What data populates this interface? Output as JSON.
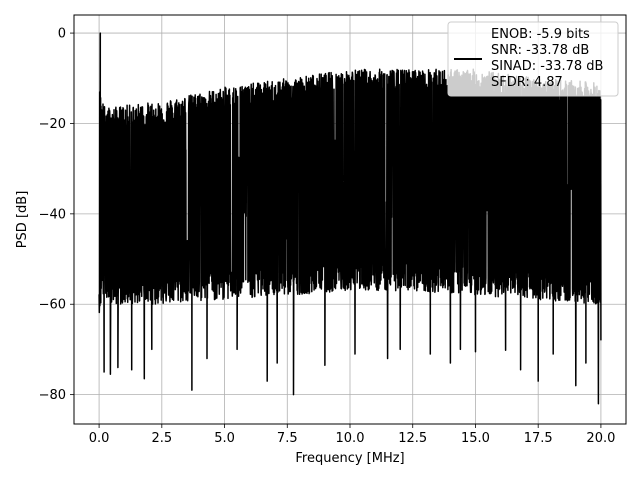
{
  "chart_data": {
    "type": "line",
    "title": "",
    "xlabel": "Frequency [MHz]",
    "ylabel": "PSD [dB]",
    "xlim": [
      -1.0,
      21.0
    ],
    "ylim": [
      -86.5,
      4
    ],
    "xticks": [
      0.0,
      2.5,
      5.0,
      7.5,
      10.0,
      12.5,
      15.0,
      17.5,
      20.0
    ],
    "xtick_labels": [
      "0.0",
      "2.5",
      "5.0",
      "7.5",
      "10.0",
      "12.5",
      "15.0",
      "17.5",
      "20.0"
    ],
    "yticks": [
      0,
      -20,
      -40,
      -60,
      -80
    ],
    "ytick_labels": [
      "0",
      "−20",
      "−40",
      "−60",
      "−80"
    ],
    "grid": true,
    "legend_position": "top-right",
    "line_color": "#000000",
    "series": [
      {
        "name": "ENOB: -5.9 bits\nSNR: -33.78 dB\nSINAD: -33.78 dB\nSFDR: 4.87",
        "legend_lines": [
          "ENOB: -5.9 bits",
          "SNR: -33.78 dB",
          "SINAD: -33.78 dB",
          "SFDR: 4.87"
        ],
        "x_range": [
          0.0,
          20.0
        ],
        "peak": {
          "x": 0.05,
          "y": 0.0
        },
        "envelope": [
          {
            "x": 0.0,
            "top": -17,
            "bottom": -60
          },
          {
            "x": 0.2,
            "top": -21,
            "bottom": -56
          },
          {
            "x": 0.5,
            "top": -21.5,
            "bottom": -58
          },
          {
            "x": 1.0,
            "top": -21,
            "bottom": -58
          },
          {
            "x": 2.5,
            "top": -20,
            "bottom": -58
          },
          {
            "x": 5.0,
            "top": -17,
            "bottom": -57
          },
          {
            "x": 7.5,
            "top": -15,
            "bottom": -56
          },
          {
            "x": 10.0,
            "top": -13,
            "bottom": -55
          },
          {
            "x": 12.5,
            "top": -13,
            "bottom": -55
          },
          {
            "x": 15.0,
            "top": -13,
            "bottom": -56
          },
          {
            "x": 17.5,
            "top": -15,
            "bottom": -57
          },
          {
            "x": 20.0,
            "top": -16,
            "bottom": -58
          }
        ],
        "deep_dips": [
          {
            "x": 0.2,
            "y": -75
          },
          {
            "x": 0.45,
            "y": -75.5
          },
          {
            "x": 0.75,
            "y": -74
          },
          {
            "x": 1.3,
            "y": -74.5
          },
          {
            "x": 1.8,
            "y": -76.5
          },
          {
            "x": 2.1,
            "y": -70
          },
          {
            "x": 3.7,
            "y": -79
          },
          {
            "x": 4.3,
            "y": -72
          },
          {
            "x": 5.5,
            "y": -70
          },
          {
            "x": 6.7,
            "y": -77
          },
          {
            "x": 7.1,
            "y": -73
          },
          {
            "x": 7.75,
            "y": -80
          },
          {
            "x": 9.0,
            "y": -73.5
          },
          {
            "x": 10.2,
            "y": -71
          },
          {
            "x": 11.5,
            "y": -72
          },
          {
            "x": 12.0,
            "y": -70
          },
          {
            "x": 13.2,
            "y": -71
          },
          {
            "x": 14.0,
            "y": -73
          },
          {
            "x": 14.4,
            "y": -70
          },
          {
            "x": 15.0,
            "y": -70.5
          },
          {
            "x": 16.2,
            "y": -70.2
          },
          {
            "x": 16.8,
            "y": -74.5
          },
          {
            "x": 17.5,
            "y": -77
          },
          {
            "x": 18.1,
            "y": -71
          },
          {
            "x": 19.0,
            "y": -78
          },
          {
            "x": 19.4,
            "y": -73
          },
          {
            "x": 19.9,
            "y": -82
          },
          {
            "x": 20.0,
            "y": -68
          }
        ]
      }
    ]
  }
}
